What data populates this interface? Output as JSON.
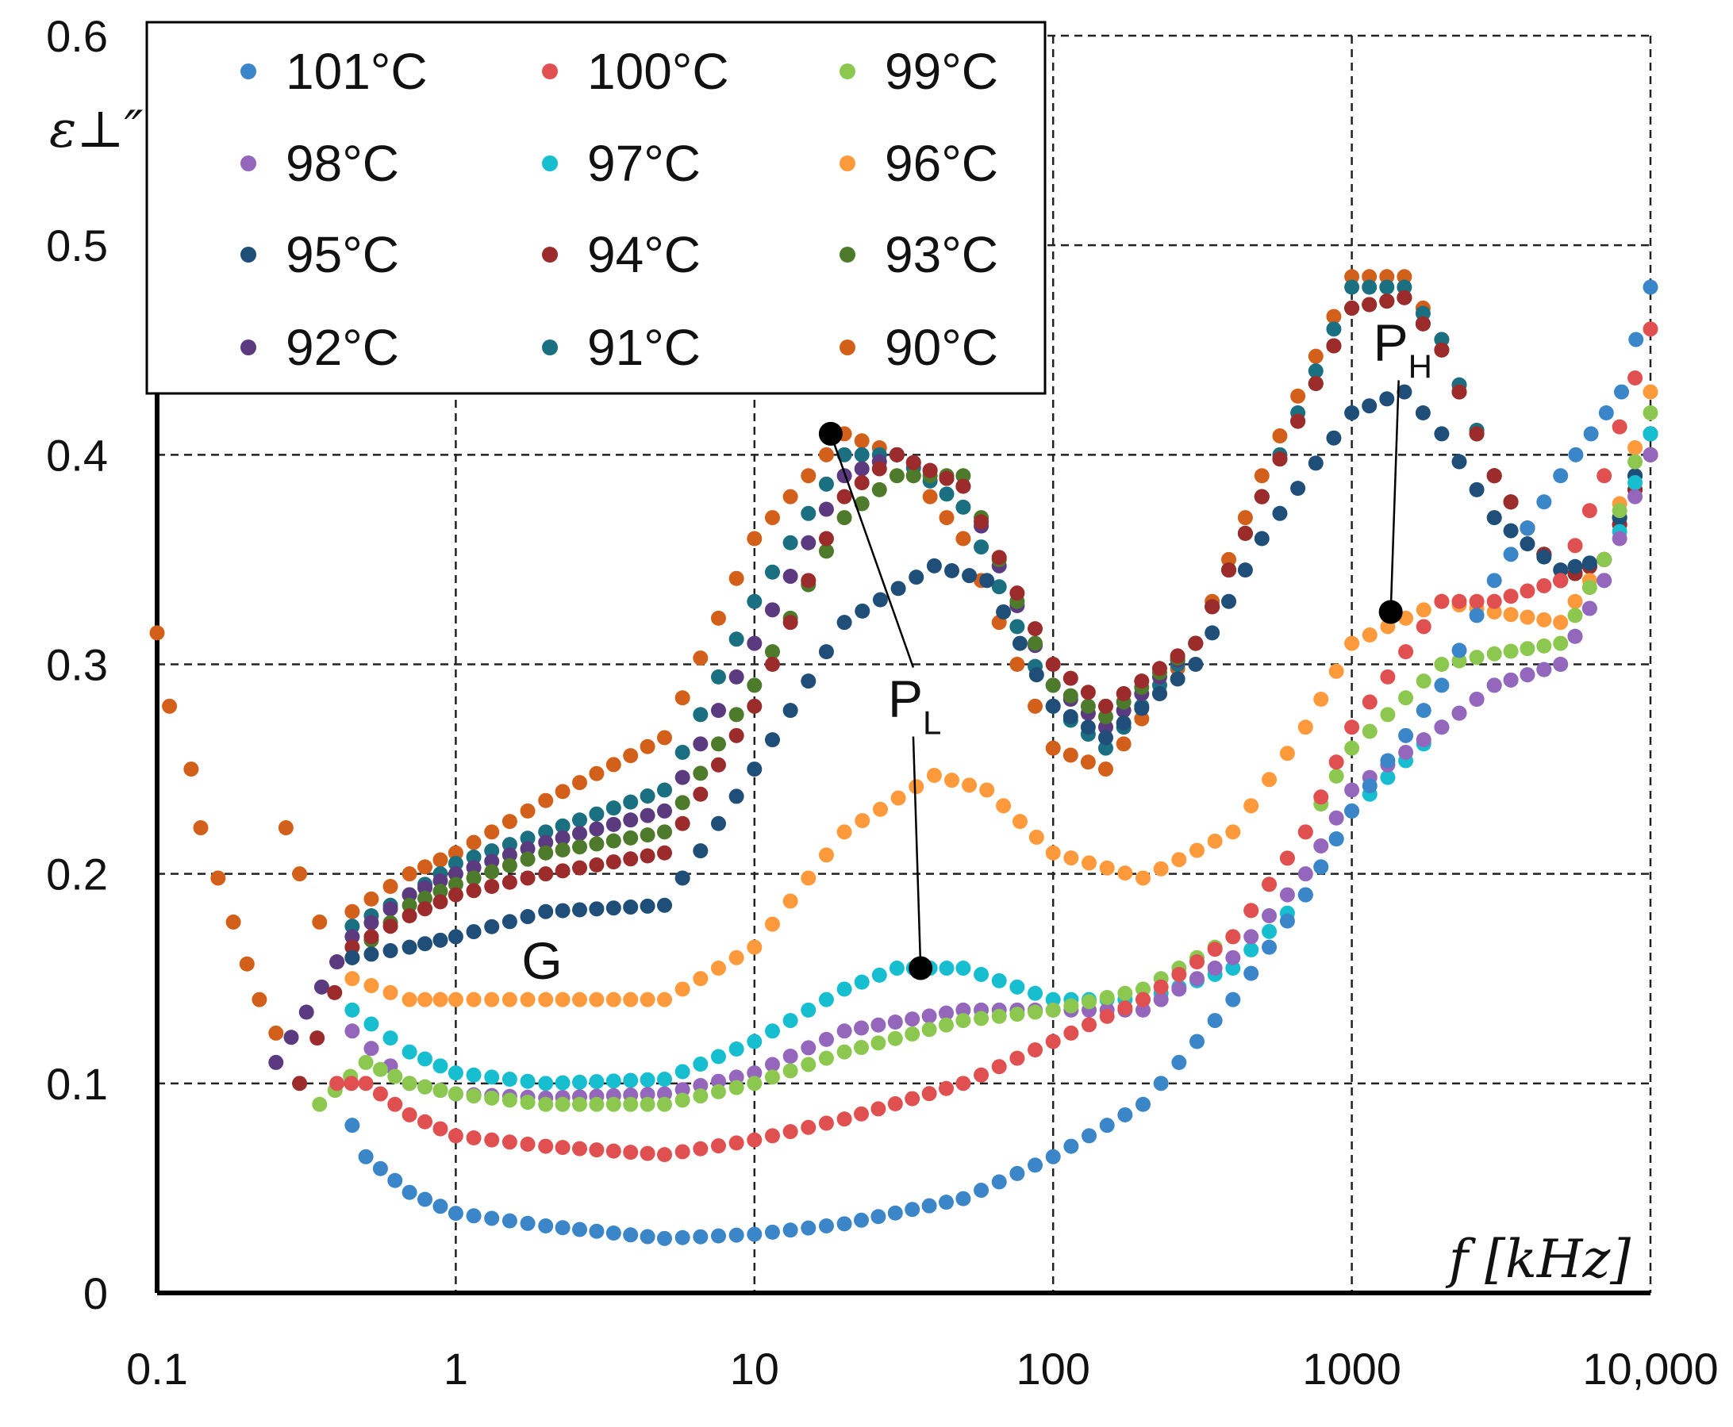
{
  "chart_data": {
    "type": "scatter",
    "title": "",
    "ylabel": "ε⊥″",
    "xlabel": "f [kHz]",
    "x_scale": "log",
    "xlim": [
      0.1,
      10000
    ],
    "ylim": [
      0,
      0.6
    ],
    "grid": "dashed",
    "legend_position": "top-left",
    "x_ticks": [
      0.1,
      1,
      10,
      100,
      1000,
      10000
    ],
    "x_tick_labels": [
      "0.1",
      "1",
      "10",
      "100",
      "1000",
      "10,000"
    ],
    "y_ticks": [
      0,
      0.1,
      0.2,
      0.3,
      0.4,
      0.5,
      0.6
    ],
    "y_tick_labels": [
      "0",
      "0.1",
      "0.2",
      "0.3",
      "0.4",
      "0.5",
      "0.6"
    ],
    "series": [
      {
        "name": "101°C",
        "color": "#3a86c8",
        "points": [
          [
            0.45,
            0.08
          ],
          [
            0.5,
            0.065
          ],
          [
            0.7,
            0.048
          ],
          [
            1,
            0.038
          ],
          [
            2,
            0.032
          ],
          [
            5,
            0.026
          ],
          [
            10,
            0.028
          ],
          [
            20,
            0.033
          ],
          [
            50,
            0.045
          ],
          [
            100,
            0.065
          ],
          [
            200,
            0.09
          ],
          [
            400,
            0.14
          ],
          [
            700,
            0.19
          ],
          [
            1000,
            0.23
          ],
          [
            2000,
            0.29
          ],
          [
            3000,
            0.34
          ],
          [
            5000,
            0.39
          ],
          [
            8000,
            0.43
          ],
          [
            10000,
            0.48
          ]
        ]
      },
      {
        "name": "100°C",
        "color": "#e05050",
        "points": [
          [
            0.4,
            0.1
          ],
          [
            0.5,
            0.1
          ],
          [
            0.7,
            0.085
          ],
          [
            1,
            0.075
          ],
          [
            2,
            0.07
          ],
          [
            5,
            0.066
          ],
          [
            10,
            0.073
          ],
          [
            20,
            0.083
          ],
          [
            50,
            0.1
          ],
          [
            100,
            0.12
          ],
          [
            200,
            0.14
          ],
          [
            400,
            0.17
          ],
          [
            700,
            0.22
          ],
          [
            1000,
            0.27
          ],
          [
            2000,
            0.33
          ],
          [
            3000,
            0.33
          ],
          [
            5000,
            0.34
          ],
          [
            7000,
            0.39
          ],
          [
            10000,
            0.46
          ]
        ]
      },
      {
        "name": "99°C",
        "color": "#8cc850",
        "points": [
          [
            0.35,
            0.09
          ],
          [
            0.5,
            0.11
          ],
          [
            0.7,
            0.1
          ],
          [
            1,
            0.095
          ],
          [
            2,
            0.09
          ],
          [
            5,
            0.09
          ],
          [
            10,
            0.1
          ],
          [
            20,
            0.115
          ],
          [
            50,
            0.13
          ],
          [
            100,
            0.135
          ],
          [
            200,
            0.145
          ],
          [
            400,
            0.17
          ],
          [
            700,
            0.22
          ],
          [
            1000,
            0.26
          ],
          [
            2000,
            0.3
          ],
          [
            3000,
            0.305
          ],
          [
            5000,
            0.31
          ],
          [
            7000,
            0.35
          ],
          [
            10000,
            0.42
          ]
        ]
      },
      {
        "name": "98°C",
        "color": "#9467bd",
        "points": [
          [
            0.45,
            0.125
          ],
          [
            0.7,
            0.1
          ],
          [
            1,
            0.095
          ],
          [
            2,
            0.093
          ],
          [
            5,
            0.095
          ],
          [
            10,
            0.105
          ],
          [
            20,
            0.125
          ],
          [
            50,
            0.135
          ],
          [
            100,
            0.135
          ],
          [
            200,
            0.135
          ],
          [
            400,
            0.16
          ],
          [
            700,
            0.2
          ],
          [
            1000,
            0.24
          ],
          [
            2000,
            0.27
          ],
          [
            3000,
            0.29
          ],
          [
            5000,
            0.3
          ],
          [
            7000,
            0.34
          ],
          [
            10000,
            0.4
          ]
        ]
      },
      {
        "name": "97°C",
        "color": "#17becf",
        "points": [
          [
            0.45,
            0.135
          ],
          [
            0.7,
            0.115
          ],
          [
            1,
            0.105
          ],
          [
            2,
            0.1
          ],
          [
            5,
            0.102
          ],
          [
            10,
            0.12
          ],
          [
            20,
            0.145
          ],
          [
            30,
            0.155
          ],
          [
            50,
            0.155
          ],
          [
            100,
            0.14
          ],
          [
            200,
            0.14
          ],
          [
            400,
            0.155
          ],
          [
            700,
            0.19
          ],
          [
            1000,
            0.23
          ],
          [
            2000,
            0.27
          ],
          [
            3000,
            0.29
          ],
          [
            5000,
            0.3
          ],
          [
            7000,
            0.34
          ],
          [
            10000,
            0.41
          ]
        ]
      },
      {
        "name": "96°C",
        "color": "#ff9a3c",
        "points": [
          [
            0.45,
            0.15
          ],
          [
            0.7,
            0.14
          ],
          [
            1,
            0.14
          ],
          [
            2,
            0.14
          ],
          [
            5,
            0.14
          ],
          [
            10,
            0.165
          ],
          [
            20,
            0.22
          ],
          [
            40,
            0.247
          ],
          [
            60,
            0.24
          ],
          [
            100,
            0.21
          ],
          [
            200,
            0.198
          ],
          [
            400,
            0.22
          ],
          [
            700,
            0.27
          ],
          [
            1000,
            0.31
          ],
          [
            2000,
            0.33
          ],
          [
            3000,
            0.325
          ],
          [
            5000,
            0.32
          ],
          [
            7000,
            0.35
          ],
          [
            10000,
            0.43
          ]
        ]
      },
      {
        "name": "95°C",
        "color": "#1f4e79",
        "points": [
          [
            0.45,
            0.16
          ],
          [
            0.7,
            0.165
          ],
          [
            1,
            0.17
          ],
          [
            2,
            0.182
          ],
          [
            5,
            0.185
          ],
          [
            10,
            0.25
          ],
          [
            20,
            0.32
          ],
          [
            40,
            0.347
          ],
          [
            60,
            0.34
          ],
          [
            100,
            0.28
          ],
          [
            150,
            0.265
          ],
          [
            300,
            0.3
          ],
          [
            500,
            0.36
          ],
          [
            1000,
            0.42
          ],
          [
            1500,
            0.43
          ],
          [
            2000,
            0.41
          ],
          [
            3000,
            0.37
          ],
          [
            5000,
            0.345
          ],
          [
            7000,
            0.35
          ],
          [
            10000,
            0.41
          ]
        ]
      },
      {
        "name": "94°C",
        "color": "#9c2b2b",
        "points": [
          [
            0.3,
            0.1
          ],
          [
            0.45,
            0.165
          ],
          [
            0.7,
            0.18
          ],
          [
            1,
            0.19
          ],
          [
            2,
            0.2
          ],
          [
            5,
            0.21
          ],
          [
            10,
            0.28
          ],
          [
            20,
            0.38
          ],
          [
            30,
            0.4
          ],
          [
            50,
            0.385
          ],
          [
            100,
            0.3
          ],
          [
            150,
            0.28
          ],
          [
            300,
            0.31
          ],
          [
            500,
            0.38
          ],
          [
            1000,
            0.47
          ],
          [
            1500,
            0.475
          ],
          [
            2000,
            0.45
          ],
          [
            3000,
            0.39
          ],
          [
            5000,
            0.34
          ],
          [
            7000,
            0.35
          ],
          [
            10000,
            0.4
          ]
        ]
      },
      {
        "name": "93°C",
        "color": "#4e7a2c",
        "points": [
          [
            0.45,
            0.16
          ],
          [
            0.7,
            0.185
          ],
          [
            1,
            0.195
          ],
          [
            2,
            0.21
          ],
          [
            5,
            0.22
          ],
          [
            10,
            0.29
          ],
          [
            20,
            0.37
          ],
          [
            30,
            0.39
          ],
          [
            50,
            0.39
          ],
          [
            100,
            0.29
          ],
          [
            150,
            0.275
          ],
          [
            300,
            0.31
          ],
          [
            500,
            0.38
          ],
          [
            1000,
            0.47
          ],
          [
            1500,
            0.475
          ],
          [
            2000,
            0.45
          ],
          [
            3000,
            0.39
          ],
          [
            5000,
            0.34
          ],
          [
            7000,
            0.35
          ],
          [
            10000,
            0.4
          ]
        ]
      },
      {
        "name": "92°C",
        "color": "#5b3a80",
        "points": [
          [
            0.25,
            0.11
          ],
          [
            0.45,
            0.17
          ],
          [
            0.7,
            0.19
          ],
          [
            1,
            0.2
          ],
          [
            2,
            0.215
          ],
          [
            5,
            0.23
          ],
          [
            10,
            0.31
          ],
          [
            20,
            0.39
          ],
          [
            30,
            0.4
          ],
          [
            50,
            0.385
          ],
          [
            100,
            0.29
          ],
          [
            150,
            0.27
          ],
          [
            300,
            0.31
          ],
          [
            500,
            0.38
          ],
          [
            1000,
            0.47
          ],
          [
            1500,
            0.475
          ],
          [
            2000,
            0.45
          ],
          [
            3000,
            0.39
          ],
          [
            5000,
            0.34
          ],
          [
            7000,
            0.35
          ],
          [
            10000,
            0.4
          ]
        ]
      },
      {
        "name": "91°C",
        "color": "#1a6f80",
        "points": [
          [
            0.45,
            0.175
          ],
          [
            0.7,
            0.19
          ],
          [
            1,
            0.205
          ],
          [
            2,
            0.22
          ],
          [
            5,
            0.24
          ],
          [
            10,
            0.33
          ],
          [
            20,
            0.4
          ],
          [
            30,
            0.4
          ],
          [
            50,
            0.375
          ],
          [
            100,
            0.28
          ],
          [
            150,
            0.26
          ],
          [
            300,
            0.31
          ],
          [
            500,
            0.38
          ],
          [
            1000,
            0.48
          ],
          [
            1500,
            0.48
          ],
          [
            2000,
            0.455
          ],
          [
            3000,
            0.39
          ],
          [
            5000,
            0.34
          ],
          [
            7000,
            0.35
          ],
          [
            10000,
            0.41
          ]
        ]
      },
      {
        "name": "90°C",
        "color": "#d2601a",
        "points": [
          [
            0.1,
            0.315
          ],
          [
            0.11,
            0.28
          ],
          [
            0.13,
            0.25
          ],
          [
            0.14,
            0.222
          ],
          [
            0.16,
            0.198
          ],
          [
            0.18,
            0.177
          ],
          [
            0.2,
            0.157
          ],
          [
            0.22,
            0.14
          ],
          [
            0.25,
            0.124
          ],
          [
            0.27,
            0.222
          ],
          [
            0.3,
            0.2
          ],
          [
            0.35,
            0.177
          ],
          [
            0.4,
            0.158
          ],
          [
            0.45,
            0.182
          ],
          [
            0.7,
            0.2
          ],
          [
            1,
            0.21
          ],
          [
            2,
            0.235
          ],
          [
            5,
            0.265
          ],
          [
            10,
            0.36
          ],
          [
            20,
            0.41
          ],
          [
            30,
            0.4
          ],
          [
            50,
            0.36
          ],
          [
            100,
            0.26
          ],
          [
            150,
            0.25
          ],
          [
            300,
            0.31
          ],
          [
            500,
            0.39
          ],
          [
            1000,
            0.485
          ],
          [
            1500,
            0.485
          ],
          [
            2000,
            0.455
          ],
          [
            3000,
            0.39
          ],
          [
            5000,
            0.34
          ],
          [
            7000,
            0.35
          ],
          [
            10000,
            0.41
          ]
        ]
      }
    ],
    "annotations": [
      {
        "label": "P",
        "subscript": "L",
        "target_points": [
          [
            18,
            0.41
          ],
          [
            36,
            0.155
          ]
        ],
        "text_at": [
          32,
          0.275
        ]
      },
      {
        "label": "P",
        "subscript": "H",
        "target_points": [
          [
            1350,
            0.325
          ]
        ],
        "text_at": [
          1350,
          0.445
        ]
      },
      {
        "label": "G",
        "subscript": "",
        "text_at": [
          1.9,
          0.15
        ]
      }
    ],
    "legend": [
      {
        "label": "101°C",
        "color": "#3a86c8"
      },
      {
        "label": "100°C",
        "color": "#e05050"
      },
      {
        "label": "99°C",
        "color": "#8cc850"
      },
      {
        "label": "98°C",
        "color": "#9467bd"
      },
      {
        "label": "97°C",
        "color": "#17becf"
      },
      {
        "label": "96°C",
        "color": "#ff9a3c"
      },
      {
        "label": "95°C",
        "color": "#1f4e79"
      },
      {
        "label": "94°C",
        "color": "#9c2b2b"
      },
      {
        "label": "93°C",
        "color": "#4e7a2c"
      },
      {
        "label": "92°C",
        "color": "#5b3a80"
      },
      {
        "label": "91°C",
        "color": "#1a6f80"
      },
      {
        "label": "90°C",
        "color": "#d2601a"
      }
    ]
  }
}
